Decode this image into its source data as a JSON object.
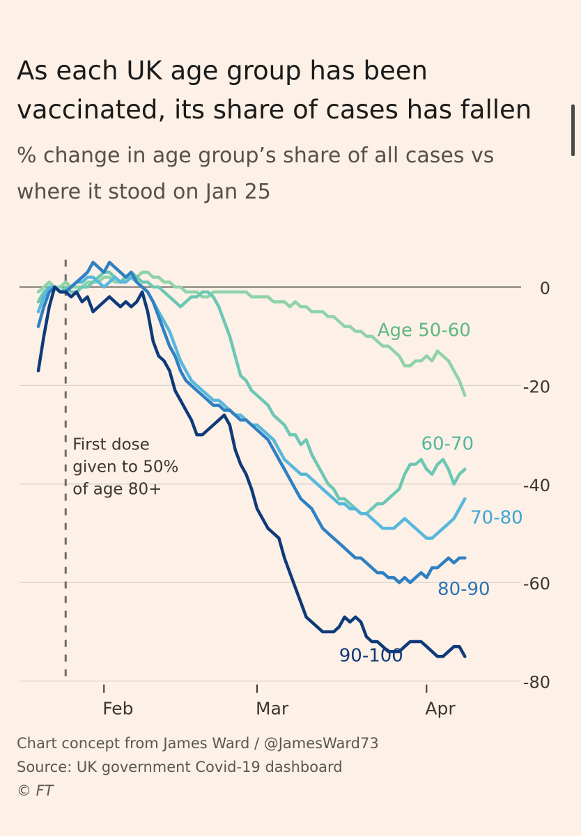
{
  "header": {
    "title": "As each UK age group has been vaccinated, its share of cases has fallen",
    "subtitle": "% change in age group’s share of all cases vs where it stood on Jan 25"
  },
  "footer": {
    "concept": "Chart concept from James Ward / @JamesWard73",
    "source": "Source: UK government Covid-19 dashboard",
    "copyright": "© FT"
  },
  "chart_data": {
    "type": "line",
    "title": "As each UK age group has been vaccinated, its share of cases has fallen",
    "subtitle": "% change in age group’s share of all cases vs where it stood on Jan 25",
    "xlabel": "",
    "ylabel": "",
    "x_unit": "days since Jan 20",
    "xlim": [
      0,
      80
    ],
    "ylim": [
      -80,
      5
    ],
    "y_ticks": [
      0,
      -20,
      -40,
      -60,
      -80
    ],
    "y_tick_labels": [
      "0",
      "-20",
      "-40",
      "-60",
      "-80"
    ],
    "x_ticks": [
      {
        "day": 12,
        "label": "Feb"
      },
      {
        "day": 40,
        "label": "Mar"
      },
      {
        "day": 71,
        "label": "Apr"
      }
    ],
    "annotation": {
      "day": 5,
      "text": [
        "First dose",
        "given to 50%",
        "of age 80+"
      ]
    },
    "colors": {
      "Age 50-60": "#8fd3a8",
      "60-70": "#6cc7b4",
      "70-80": "#57b8dc",
      "80-90": "#2f7fc3",
      "90-100": "#0e3a7a",
      "axis": "#a8a29c",
      "annotation": "#6f6a65"
    },
    "series": [
      {
        "name": "Age 50-60",
        "label": "Age 50-60",
        "x": [
          0,
          1,
          2,
          3,
          4,
          5,
          6,
          7,
          8,
          9,
          10,
          11,
          12,
          13,
          14,
          15,
          16,
          17,
          18,
          19,
          20,
          21,
          22,
          23,
          24,
          25,
          26,
          27,
          28,
          29,
          30,
          31,
          32,
          33,
          34,
          35,
          36,
          37,
          38,
          39,
          40,
          41,
          42,
          43,
          44,
          45,
          46,
          47,
          48,
          49,
          50,
          51,
          52,
          53,
          54,
          55,
          56,
          57,
          58,
          59,
          60,
          61,
          62,
          63,
          64,
          65,
          66,
          67,
          68,
          69,
          70,
          71,
          72,
          73,
          74,
          75,
          76,
          77,
          78
        ],
        "values": [
          -1,
          0,
          1,
          0,
          0,
          1,
          0,
          0,
          0,
          1,
          1,
          1,
          2,
          2,
          1,
          1,
          2,
          2,
          2,
          3,
          3,
          2,
          2,
          1,
          1,
          0,
          0,
          -1,
          -1,
          -1,
          -2,
          -2,
          -1,
          -1,
          -1,
          -1,
          -1,
          -1,
          -1,
          -2,
          -2,
          -2,
          -2,
          -3,
          -3,
          -3,
          -4,
          -3,
          -4,
          -4,
          -5,
          -5,
          -5,
          -6,
          -6,
          -7,
          -8,
          -8,
          -9,
          -9,
          -10,
          -10,
          -11,
          -12,
          -12,
          -13,
          -14,
          -16,
          -16,
          -15,
          -15,
          -14,
          -15,
          -13,
          -14,
          -15,
          -17,
          -19,
          -22
        ]
      },
      {
        "name": "60-70",
        "label": "60-70",
        "x": [
          0,
          1,
          2,
          3,
          4,
          5,
          6,
          7,
          8,
          9,
          10,
          11,
          12,
          13,
          14,
          15,
          16,
          17,
          18,
          19,
          20,
          21,
          22,
          23,
          24,
          25,
          26,
          27,
          28,
          29,
          30,
          31,
          32,
          33,
          34,
          35,
          36,
          37,
          38,
          39,
          40,
          41,
          42,
          43,
          44,
          45,
          46,
          47,
          48,
          49,
          50,
          51,
          52,
          53,
          54,
          55,
          56,
          57,
          58,
          59,
          60,
          61,
          62,
          63,
          64,
          65,
          66,
          67,
          68,
          69,
          70,
          71,
          72,
          73,
          74,
          75,
          76,
          77,
          78
        ],
        "values": [
          -3,
          -1,
          0,
          0,
          -1,
          0,
          -1,
          -1,
          0,
          0,
          1,
          2,
          3,
          3,
          2,
          1,
          2,
          3,
          2,
          1,
          1,
          0,
          0,
          -1,
          -2,
          -3,
          -4,
          -3,
          -2,
          -2,
          -1,
          -1,
          -2,
          -4,
          -7,
          -10,
          -14,
          -18,
          -19,
          -21,
          -22,
          -23,
          -24,
          -26,
          -27,
          -28,
          -30,
          -30,
          -32,
          -31,
          -34,
          -36,
          -38,
          -40,
          -41,
          -43,
          -43,
          -44,
          -45,
          -46,
          -46,
          -45,
          -44,
          -44,
          -43,
          -42,
          -41,
          -38,
          -36,
          -36,
          -35,
          -37,
          -38,
          -36,
          -35,
          -37,
          -40,
          -38,
          -37
        ]
      },
      {
        "name": "70-80",
        "label": "70-80",
        "x": [
          0,
          1,
          2,
          3,
          4,
          5,
          6,
          7,
          8,
          9,
          10,
          11,
          12,
          13,
          14,
          15,
          16,
          17,
          18,
          19,
          20,
          21,
          22,
          23,
          24,
          25,
          26,
          27,
          28,
          29,
          30,
          31,
          32,
          33,
          34,
          35,
          36,
          37,
          38,
          39,
          40,
          41,
          42,
          43,
          44,
          45,
          46,
          47,
          48,
          49,
          50,
          51,
          52,
          53,
          54,
          55,
          56,
          57,
          58,
          59,
          60,
          61,
          62,
          63,
          64,
          65,
          66,
          67,
          68,
          69,
          70,
          71,
          72,
          73,
          74,
          75,
          76,
          77,
          78
        ],
        "values": [
          -5,
          -2,
          0,
          0,
          -1,
          -1,
          0,
          1,
          1,
          2,
          2,
          1,
          0,
          1,
          2,
          1,
          1,
          2,
          1,
          0,
          -1,
          -3,
          -5,
          -7,
          -9,
          -12,
          -15,
          -17,
          -19,
          -20,
          -21,
          -22,
          -23,
          -23,
          -24,
          -25,
          -26,
          -26,
          -27,
          -28,
          -28,
          -29,
          -30,
          -31,
          -33,
          -35,
          -36,
          -37,
          -38,
          -38,
          -39,
          -40,
          -41,
          -42,
          -43,
          -44,
          -44,
          -45,
          -45,
          -46,
          -46,
          -47,
          -48,
          -49,
          -49,
          -49,
          -48,
          -47,
          -48,
          -49,
          -50,
          -51,
          -51,
          -50,
          -49,
          -48,
          -47,
          -45,
          -43
        ]
      },
      {
        "name": "80-90",
        "label": "80-90",
        "x": [
          0,
          1,
          2,
          3,
          4,
          5,
          6,
          7,
          8,
          9,
          10,
          11,
          12,
          13,
          14,
          15,
          16,
          17,
          18,
          19,
          20,
          21,
          22,
          23,
          24,
          25,
          26,
          27,
          28,
          29,
          30,
          31,
          32,
          33,
          34,
          35,
          36,
          37,
          38,
          39,
          40,
          41,
          42,
          43,
          44,
          45,
          46,
          47,
          48,
          49,
          50,
          51,
          52,
          53,
          54,
          55,
          56,
          57,
          58,
          59,
          60,
          61,
          62,
          63,
          64,
          65,
          66,
          67,
          68,
          69,
          70,
          71,
          72,
          73,
          74,
          75,
          76,
          77,
          78
        ],
        "values": [
          -8,
          -4,
          -1,
          0,
          -1,
          -1,
          0,
          1,
          2,
          3,
          5,
          4,
          3,
          5,
          4,
          3,
          2,
          3,
          1,
          0,
          -1,
          -3,
          -6,
          -9,
          -12,
          -14,
          -17,
          -19,
          -20,
          -21,
          -22,
          -23,
          -24,
          -24,
          -25,
          -25,
          -26,
          -27,
          -27,
          -28,
          -29,
          -30,
          -31,
          -33,
          -35,
          -37,
          -39,
          -41,
          -43,
          -44,
          -45,
          -47,
          -49,
          -50,
          -51,
          -52,
          -53,
          -54,
          -55,
          -55,
          -56,
          -57,
          -58,
          -58,
          -59,
          -59,
          -60,
          -59,
          -60,
          -59,
          -58,
          -59,
          -57,
          -57,
          -56,
          -55,
          -56,
          -55,
          -55
        ]
      },
      {
        "name": "90-100",
        "label": "90-100",
        "x": [
          0,
          1,
          2,
          3,
          4,
          5,
          6,
          7,
          8,
          9,
          10,
          11,
          12,
          13,
          14,
          15,
          16,
          17,
          18,
          19,
          20,
          21,
          22,
          23,
          24,
          25,
          26,
          27,
          28,
          29,
          30,
          31,
          32,
          33,
          34,
          35,
          36,
          37,
          38,
          39,
          40,
          41,
          42,
          43,
          44,
          45,
          46,
          47,
          48,
          49,
          50,
          51,
          52,
          53,
          54,
          55,
          56,
          57,
          58,
          59,
          60,
          61,
          62,
          63,
          64,
          65,
          66,
          67,
          68,
          69,
          70,
          71,
          72,
          73,
          74,
          75,
          76,
          77,
          78
        ],
        "values": [
          -17,
          -10,
          -4,
          0,
          -1,
          -1,
          -2,
          -1,
          -3,
          -2,
          -5,
          -4,
          -3,
          -2,
          -3,
          -4,
          -3,
          -4,
          -3,
          -1,
          -5,
          -11,
          -14,
          -15,
          -17,
          -21,
          -23,
          -25,
          -27,
          -30,
          -30,
          -29,
          -28,
          -27,
          -26,
          -28,
          -33,
          -36,
          -38,
          -41,
          -45,
          -47,
          -49,
          -50,
          -51,
          -55,
          -58,
          -61,
          -64,
          -67,
          -68,
          -69,
          -70,
          -70,
          -70,
          -69,
          -67,
          -68,
          -67,
          -68,
          -71,
          -72,
          -72,
          -73,
          -74,
          -74,
          -74,
          -73,
          -72,
          -72,
          -72,
          -73,
          -74,
          -75,
          -75,
          -74,
          -73,
          -73,
          -75
        ]
      }
    ]
  }
}
